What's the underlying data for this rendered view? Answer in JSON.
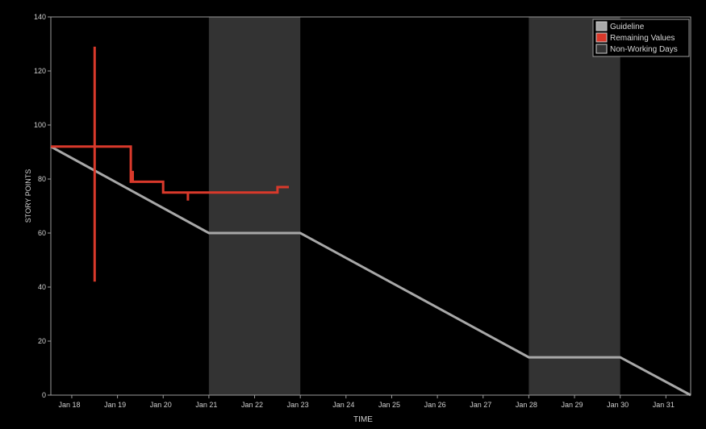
{
  "chart_data": {
    "type": "line",
    "title": "",
    "xlabel": "TIME",
    "ylabel": "STORY POINTS",
    "xlim": [
      "2024-01-17 13:00",
      "2024-01-31 13:00"
    ],
    "ylim": [
      0,
      140
    ],
    "y_ticks": [
      0,
      20,
      40,
      60,
      80,
      100,
      120,
      140
    ],
    "x_tick_labels": [
      "Jan 18",
      "Jan 19",
      "Jan 20",
      "Jan 21",
      "Jan 22",
      "Jan 23",
      "Jan 24",
      "Jan 25",
      "Jan 26",
      "Jan 27",
      "Jan 28",
      "Jan 29",
      "Jan 30",
      "Jan 31"
    ],
    "x_tick_dates": [
      "2024-01-18",
      "2024-01-19",
      "2024-01-20",
      "2024-01-21",
      "2024-01-22",
      "2024-01-23",
      "2024-01-24",
      "2024-01-25",
      "2024-01-26",
      "2024-01-27",
      "2024-01-28",
      "2024-01-29",
      "2024-01-30",
      "2024-01-31"
    ],
    "grid": false,
    "legend_position": "top-right",
    "non_working_days": [
      {
        "start": "2024-01-21",
        "end": "2024-01-23"
      },
      {
        "start": "2024-01-28",
        "end": "2024-01-30"
      }
    ],
    "series": [
      {
        "name": "Guideline",
        "color": "#a8a8a8",
        "points": [
          {
            "x": "2024-01-17 13:00",
            "y": 92
          },
          {
            "x": "2024-01-21 00:00",
            "y": 60
          },
          {
            "x": "2024-01-23 00:00",
            "y": 60
          },
          {
            "x": "2024-01-28 00:00",
            "y": 14
          },
          {
            "x": "2024-01-30 00:00",
            "y": 14
          },
          {
            "x": "2024-01-31 13:00",
            "y": 0
          }
        ]
      },
      {
        "name": "Remaining Values",
        "color": "#d9392b",
        "points": [
          {
            "x": "2024-01-17 13:00",
            "y": 92
          },
          {
            "x": "2024-01-18 12:00",
            "y": 92
          },
          {
            "x": "2024-01-18 12:00",
            "y": 129
          },
          {
            "x": "2024-01-18 12:00",
            "y": 42
          },
          {
            "x": "2024-01-18 12:00",
            "y": 92
          },
          {
            "x": "2024-01-19 07:00",
            "y": 92
          },
          {
            "x": "2024-01-19 07:00",
            "y": 79
          },
          {
            "x": "2024-01-19 08:00",
            "y": 79
          },
          {
            "x": "2024-01-19 08:00",
            "y": 83
          },
          {
            "x": "2024-01-19 08:00",
            "y": 79
          },
          {
            "x": "2024-01-20 00:00",
            "y": 79
          },
          {
            "x": "2024-01-20 00:00",
            "y": 75
          },
          {
            "x": "2024-01-20 13:00",
            "y": 75
          },
          {
            "x": "2024-01-20 13:00",
            "y": 72
          },
          {
            "x": "2024-01-20 13:00",
            "y": 75
          },
          {
            "x": "2024-01-22 12:00",
            "y": 75
          },
          {
            "x": "2024-01-22 12:00",
            "y": 77
          },
          {
            "x": "2024-01-22 18:00",
            "y": 77
          }
        ]
      }
    ],
    "legend": [
      {
        "label": "Guideline",
        "swatch": "#a8a8a8"
      },
      {
        "label": "Remaining Values",
        "swatch": "#d9392b"
      },
      {
        "label": "Non-Working Days",
        "swatch": "#333333"
      }
    ]
  }
}
